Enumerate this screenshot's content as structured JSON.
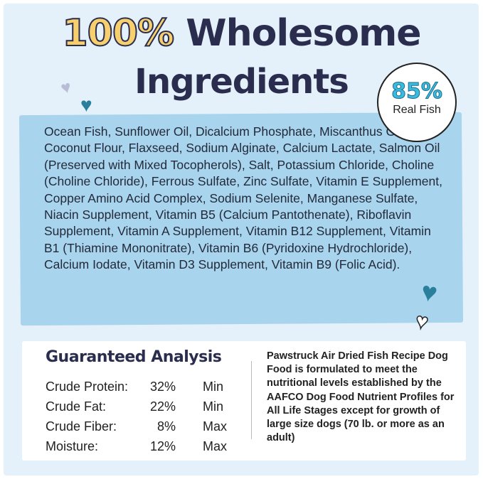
{
  "title": {
    "percent": "100%",
    "word": "Wholesome",
    "line2": "Ingredients"
  },
  "badge": {
    "value": "85%",
    "label": "Real Fish"
  },
  "ingredients": "Ocean Fish, Sunflower Oil, Dicalcium Phosphate, Miscanthus Grass, Coconut Flour, Flaxseed, Sodium Alginate, Calcium Lactate, Salmon Oil (Preserved with Mixed Tocopherols), Salt, Potassium Chloride, Choline (Choline Chloride), Ferrous Sulfate, Zinc Sulfate, Vitamin E Supplement, Copper Amino Acid Complex, Sodium Selenite, Manganese Sulfate, Niacin Supplement, Vitamin B5 (Calcium Pantothenate), Riboflavin Supplement, Vitamin A Supplement, Vitamin B12 Supplement, Vitamin B1 (Thiamine Mononitrate), Vitamin B6 (Pyridoxine Hydrochloride), Calcium Iodate, Vitamin D3 Supplement, Vitamin B9 (Folic Acid).",
  "analysis": {
    "heading": "Guaranteed Analysis",
    "rows": [
      {
        "name": "Crude Protein:",
        "value": "32%",
        "qual": "Min"
      },
      {
        "name": "Crude Fat:",
        "value": "22%",
        "qual": "Min"
      },
      {
        "name": "Crude Fiber:",
        "value": "8%",
        "qual": "Max"
      },
      {
        "name": "Moisture:",
        "value": "12%",
        "qual": "Max"
      }
    ],
    "note": "Pawstruck Air Dried Fish Recipe Dog Food is formulated to meet the nutritional levels established by the AAFCO Dog Food Nutrient Profiles for All Life Stages except for growth of large size dogs (70 lb. or more as an adult)"
  },
  "colors": {
    "navy": "#2b2d4e",
    "yellow": "#f7cf6c",
    "ingredient_box": "#a9d4ed",
    "background": "#e4f1fa",
    "teal_heart": "#2a7f9c"
  }
}
